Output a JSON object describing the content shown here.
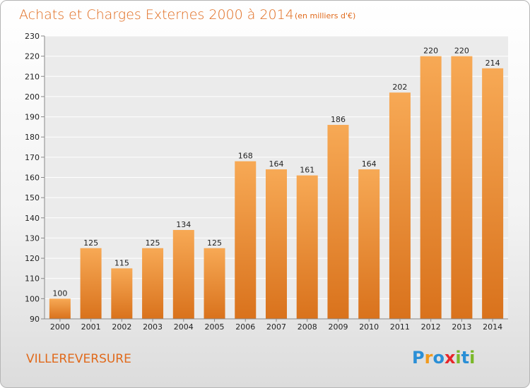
{
  "header": {
    "title": "Achats et Charges Externes 2000 à 2014",
    "unit_note": "(en milliers d'€)"
  },
  "place_name": "VILLEREVERSURE",
  "logo": {
    "text": "Proxiti",
    "letters": [
      {
        "ch": "P",
        "color": "#2a8fd6"
      },
      {
        "ch": "r",
        "color": "#f19a1c"
      },
      {
        "ch": "o",
        "color": "#2a8fd6"
      },
      {
        "ch": "x",
        "color": "#e8262a"
      },
      {
        "ch": "i",
        "color": "#7ab828"
      },
      {
        "ch": "t",
        "color": "#2a8fd6"
      },
      {
        "ch": "i",
        "color": "#7ab828"
      }
    ]
  },
  "chart_data": {
    "type": "bar",
    "title": "Achats et Charges Externes 2000 à 2014",
    "subtitle": "(en milliers d'€)",
    "xlabel": "",
    "ylabel": "",
    "categories": [
      "2000",
      "2001",
      "2002",
      "2003",
      "2004",
      "2005",
      "2006",
      "2007",
      "2008",
      "2009",
      "2010",
      "2011",
      "2012",
      "2013",
      "2014"
    ],
    "values": [
      100,
      125,
      115,
      125,
      134,
      125,
      168,
      164,
      161,
      186,
      164,
      202,
      220,
      220,
      214
    ],
    "ylim": [
      90,
      230
    ],
    "yticks": [
      90,
      100,
      110,
      120,
      130,
      140,
      150,
      160,
      170,
      180,
      190,
      200,
      210,
      220,
      230
    ],
    "grid": true,
    "legend": "none",
    "bar_color_light": "#f7a955",
    "bar_color_dark": "#d9721c"
  }
}
